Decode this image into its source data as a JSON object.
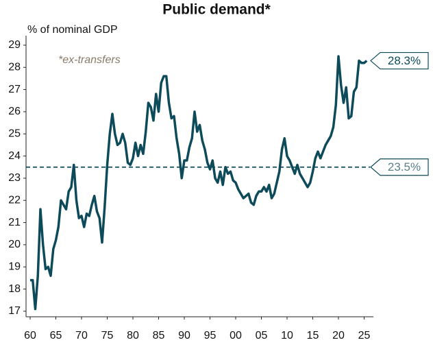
{
  "chart_data": {
    "type": "line",
    "title": "Public demand*",
    "y_label": "% of nominal GDP",
    "annotation": "*ex-transfers",
    "x": [
      1960.0,
      1960.5,
      1961.0,
      1961.5,
      1962.0,
      1962.5,
      1963.0,
      1963.5,
      1964.0,
      1964.5,
      1965.0,
      1965.5,
      1966.0,
      1966.5,
      1967.0,
      1967.5,
      1968.0,
      1968.5,
      1969.0,
      1969.5,
      1970.0,
      1970.5,
      1971.0,
      1971.5,
      1972.0,
      1972.5,
      1973.0,
      1973.5,
      1974.0,
      1974.5,
      1975.0,
      1975.5,
      1976.0,
      1976.5,
      1977.0,
      1977.5,
      1978.0,
      1978.5,
      1979.0,
      1979.5,
      1980.0,
      1980.5,
      1981.0,
      1981.5,
      1982.0,
      1982.5,
      1983.0,
      1983.5,
      1984.0,
      1984.5,
      1985.0,
      1985.5,
      1986.0,
      1986.5,
      1987.0,
      1987.5,
      1988.0,
      1988.5,
      1989.0,
      1989.5,
      1990.0,
      1990.5,
      1991.0,
      1991.5,
      1992.0,
      1992.5,
      1993.0,
      1993.5,
      1994.0,
      1994.5,
      1995.0,
      1995.5,
      1996.0,
      1996.5,
      1997.0,
      1997.5,
      1998.0,
      1998.5,
      1999.0,
      1999.5,
      2000.0,
      2000.5,
      2001.0,
      2001.5,
      2002.0,
      2002.5,
      2003.0,
      2003.5,
      2004.0,
      2004.5,
      2005.0,
      2005.5,
      2006.0,
      2006.5,
      2007.0,
      2007.5,
      2008.0,
      2008.5,
      2009.0,
      2009.5,
      2010.0,
      2010.5,
      2011.0,
      2011.5,
      2012.0,
      2012.5,
      2013.0,
      2013.5,
      2014.0,
      2014.5,
      2015.0,
      2015.5,
      2016.0,
      2016.5,
      2017.0,
      2017.5,
      2018.0,
      2018.5,
      2019.0,
      2019.5,
      2020.0,
      2020.5,
      2021.0,
      2021.5,
      2022.0,
      2022.5,
      2023.0,
      2023.5,
      2024.0,
      2024.5,
      2025.0,
      2025.5
    ],
    "series": [
      {
        "name": "Public demand",
        "color": "#0d4a5a",
        "values": [
          18.4,
          18.4,
          17.1,
          18.6,
          21.6,
          20.0,
          18.9,
          19.0,
          18.6,
          19.8,
          20.2,
          20.8,
          22.0,
          21.8,
          21.6,
          22.4,
          22.6,
          23.6,
          22.0,
          21.2,
          21.3,
          20.8,
          21.4,
          21.3,
          21.8,
          22.2,
          21.5,
          21.2,
          20.1,
          21.7,
          23.6,
          25.0,
          25.9,
          25.0,
          24.5,
          24.6,
          25.0,
          24.6,
          23.7,
          23.6,
          23.9,
          24.6,
          24.0,
          24.5,
          24.1,
          25.1,
          26.4,
          26.2,
          25.6,
          26.8,
          26.0,
          27.3,
          27.6,
          27.6,
          26.4,
          25.7,
          25.8,
          24.8,
          24.1,
          23.0,
          23.8,
          23.8,
          24.4,
          24.8,
          26.0,
          25.1,
          25.4,
          24.7,
          24.3,
          23.7,
          23.4,
          23.8,
          23.0,
          22.8,
          23.3,
          22.7,
          23.5,
          23.2,
          23.3,
          22.9,
          22.8,
          22.5,
          22.3,
          22.1,
          22.2,
          22.3,
          21.9,
          21.8,
          22.2,
          22.4,
          22.4,
          22.6,
          22.4,
          22.7,
          22.1,
          22.3,
          22.8,
          23.3,
          24.3,
          24.8,
          24.0,
          23.8,
          23.5,
          23.2,
          23.6,
          23.2,
          23.0,
          22.8,
          22.6,
          22.8,
          23.3,
          23.9,
          24.2,
          23.9,
          24.2,
          24.5,
          24.7,
          24.9,
          25.3,
          26.3,
          28.5,
          27.2,
          26.4,
          27.1,
          25.7,
          25.8,
          26.9,
          27.1,
          28.3,
          28.2,
          28.2,
          28.3
        ]
      }
    ],
    "end_label": {
      "value": 28.3,
      "label": "28.3%"
    },
    "reference_lines": [
      {
        "value": 23.5,
        "label": "23.5%",
        "color": "#0d4a5a",
        "label_color": "#5a7f8a"
      }
    ],
    "xlim": [
      1959.2,
      2026.8
    ],
    "ylim": [
      16.75,
      29.43
    ],
    "xticks": [
      {
        "value": 1960,
        "label": "60"
      },
      {
        "value": 1965,
        "label": "65"
      },
      {
        "value": 1970,
        "label": "70"
      },
      {
        "value": 1975,
        "label": "75"
      },
      {
        "value": 1980,
        "label": "80"
      },
      {
        "value": 1985,
        "label": "85"
      },
      {
        "value": 1990,
        "label": "90"
      },
      {
        "value": 1995,
        "label": "95"
      },
      {
        "value": 2000,
        "label": "00"
      },
      {
        "value": 2005,
        "label": "05"
      },
      {
        "value": 2010,
        "label": "10"
      },
      {
        "value": 2015,
        "label": "15"
      },
      {
        "value": 2020,
        "label": "20"
      },
      {
        "value": 2025,
        "label": "25"
      }
    ],
    "yticks": [
      17,
      18,
      19,
      20,
      21,
      22,
      23,
      24,
      25,
      26,
      27,
      28,
      29
    ]
  }
}
